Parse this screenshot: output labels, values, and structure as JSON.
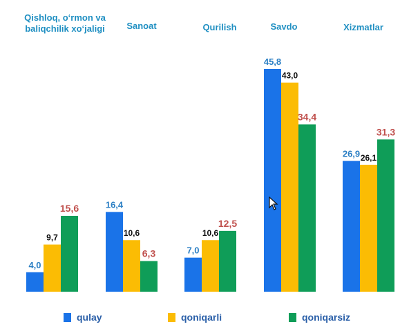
{
  "chart_data": {
    "type": "bar",
    "categories": [
      "Qishloq, o‘rmon va baliqchilik xo‘jaligi",
      "Sanoat",
      "Qurilish",
      "Savdo",
      "Xizmatlar"
    ],
    "category_lines": [
      [
        "Qishloq, o‘rmon va",
        "baliqchilik xo‘jaligi"
      ],
      [
        "Sanoat"
      ],
      [
        "Qurilish"
      ],
      [
        "Savdo"
      ],
      [
        "Xizmatlar"
      ]
    ],
    "series": [
      {
        "name": "qulay",
        "color": "#1a73e8",
        "label_color": "#2b7fc4",
        "values": [
          4.0,
          16.4,
          7.0,
          45.8,
          26.9
        ],
        "labels": [
          "4,0",
          "16,4",
          "7,0",
          "45,8",
          "26,9"
        ]
      },
      {
        "name": "qoniqarli",
        "color": "#fbbc04",
        "label_color": "#111111",
        "values": [
          9.7,
          10.6,
          10.6,
          43.0,
          26.1
        ],
        "labels": [
          "9,7",
          "10,6",
          "10,6",
          "43,0",
          "26,1"
        ]
      },
      {
        "name": "qoniqarsiz",
        "color": "#0f9d58",
        "label_color": "#c0504d",
        "values": [
          15.6,
          6.3,
          12.5,
          34.4,
          31.3
        ],
        "labels": [
          "15,6",
          "6,3",
          "12,5",
          "34,4",
          "31,3"
        ]
      }
    ],
    "ylim": [
      0,
      50
    ],
    "legend_position": "bottom",
    "grid": false
  }
}
